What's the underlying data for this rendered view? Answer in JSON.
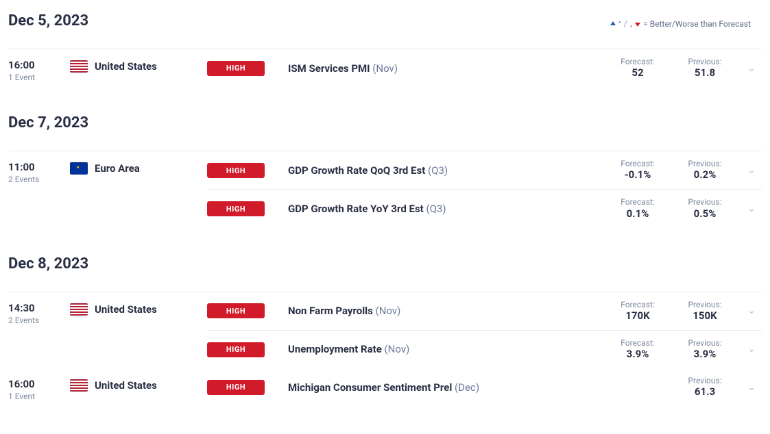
{
  "legend": {
    "text": "= Better/Worse than Forecast",
    "better_color": "#1a5fb4",
    "worse_color": "#d11a2a"
  },
  "impact_label": "HIGH",
  "impact_bg": "#d11a2a",
  "forecast_label": "Forecast:",
  "previous_label": "Previous:",
  "dates": [
    {
      "heading": "Dec 5, 2023",
      "slots": [
        {
          "time": "16:00",
          "events_count": "1 Event",
          "country": "United States",
          "flag": "us",
          "events": [
            {
              "name": "ISM Services PMI",
              "period": "(Nov)",
              "forecast": "52",
              "previous": "51.8"
            }
          ]
        }
      ]
    },
    {
      "heading": "Dec 7, 2023",
      "slots": [
        {
          "time": "11:00",
          "events_count": "2 Events",
          "country": "Euro Area",
          "flag": "eu",
          "events": [
            {
              "name": "GDP Growth Rate QoQ 3rd Est",
              "period": "(Q3)",
              "forecast": "-0.1%",
              "previous": "0.2%"
            },
            {
              "name": "GDP Growth Rate YoY 3rd Est",
              "period": "(Q3)",
              "forecast": "0.1%",
              "previous": "0.5%"
            }
          ]
        }
      ]
    },
    {
      "heading": "Dec 8, 2023",
      "slots": [
        {
          "time": "14:30",
          "events_count": "2 Events",
          "country": "United States",
          "flag": "us",
          "events": [
            {
              "name": "Non Farm Payrolls",
              "period": "(Nov)",
              "forecast": "170K",
              "previous": "150K"
            },
            {
              "name": "Unemployment Rate",
              "period": "(Nov)",
              "forecast": "3.9%",
              "previous": "3.9%"
            }
          ]
        },
        {
          "time": "16:00",
          "events_count": "1 Event",
          "country": "United States",
          "flag": "us",
          "events": [
            {
              "name": "Michigan Consumer Sentiment Prel",
              "period": "(Dec)",
              "forecast": "",
              "previous": "61.3"
            }
          ]
        }
      ]
    }
  ]
}
